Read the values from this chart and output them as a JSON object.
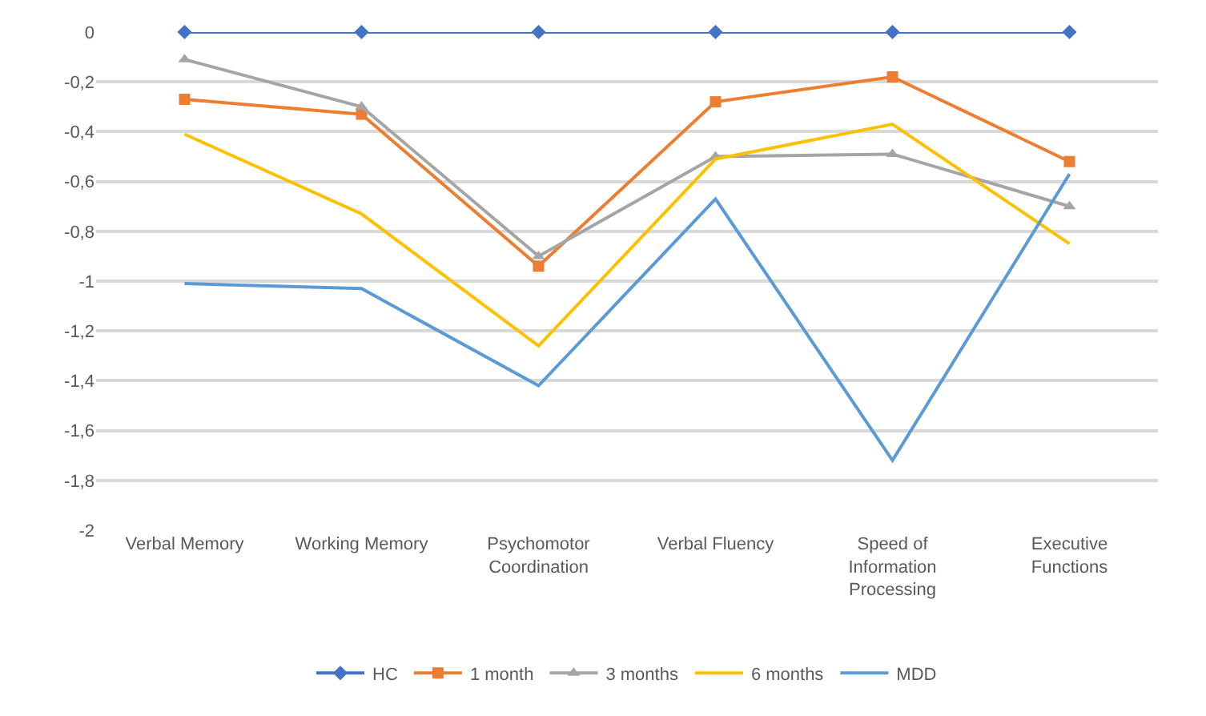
{
  "chart_data": {
    "type": "line",
    "categories": [
      "Verbal Memory",
      "Working Memory",
      "Psychomotor Coordination",
      "Verbal Fluency",
      "Speed of Information Processing",
      "Executive Functions"
    ],
    "series": [
      {
        "name": "HC",
        "color": "#4472c4",
        "marker": "diamond",
        "values": [
          0,
          0,
          0,
          0,
          0,
          0
        ]
      },
      {
        "name": "1 month",
        "color": "#ed7d31",
        "marker": "square",
        "values": [
          -0.27,
          -0.33,
          -0.94,
          -0.28,
          -0.18,
          -0.52
        ]
      },
      {
        "name": "3 months",
        "color": "#a5a5a5",
        "marker": "triangle",
        "values": [
          -0.11,
          -0.3,
          -0.9,
          -0.5,
          -0.49,
          -0.7
        ]
      },
      {
        "name": "6 months",
        "color": "#ffc000",
        "marker": "none",
        "values": [
          -0.41,
          -0.73,
          -1.26,
          -0.51,
          -0.37,
          -0.85
        ]
      },
      {
        "name": "MDD",
        "color": "#5b9bd5",
        "marker": "none",
        "values": [
          -1.01,
          -1.03,
          -1.42,
          -0.67,
          -1.72,
          -0.57
        ]
      }
    ],
    "ylim": [
      -2,
      0
    ],
    "yticks": [
      0,
      {
        "value": -0.2,
        "label": "-0,2"
      },
      {
        "value": -0.4,
        "label": "-0,4"
      },
      {
        "value": -0.6,
        "label": "-0,6"
      },
      {
        "value": -0.8,
        "label": "-0,8"
      },
      -1,
      {
        "value": -1.2,
        "label": "-1,2"
      },
      {
        "value": -1.4,
        "label": "-1,4"
      },
      {
        "value": -1.6,
        "label": "-1,6"
      },
      {
        "value": -1.8,
        "label": "-1,8"
      },
      -2
    ],
    "grid": "y",
    "legend": "bottom",
    "line_style": "solid"
  }
}
